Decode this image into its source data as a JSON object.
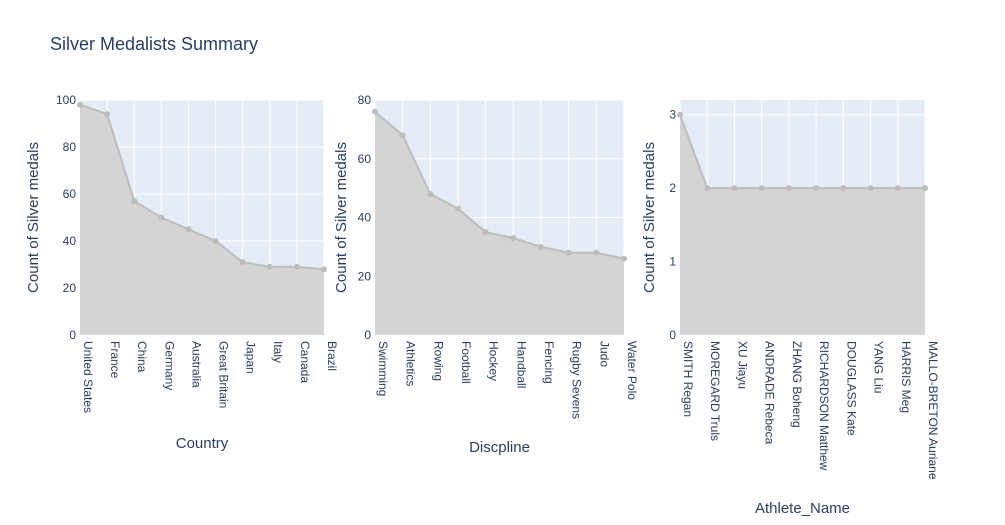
{
  "title": "Silver Medalists Summary",
  "colors": {
    "plot_bg": "#e5ecf6",
    "grid": "#ffffff",
    "area_fill": "#d3d3d3",
    "line": "#bdbdbd",
    "text": "#2a3f5f"
  },
  "chart_data": [
    {
      "type": "area",
      "xlabel": "Country",
      "ylabel": "Count of Silver medals",
      "ylim": [
        0,
        100
      ],
      "yticks": [
        0,
        20,
        40,
        60,
        80,
        100
      ],
      "grid": true,
      "categories": [
        "United States",
        "France",
        "China",
        "Germany",
        "Australia",
        "Great Britain",
        "Japan",
        "Italy",
        "Canada",
        "Brazil"
      ],
      "values": [
        98,
        94,
        57,
        50,
        45,
        40,
        31,
        29,
        29,
        28
      ]
    },
    {
      "type": "area",
      "xlabel": "Discpline",
      "ylabel": "Count of Silver medals",
      "ylim": [
        0,
        80
      ],
      "yticks": [
        0,
        20,
        40,
        60,
        80
      ],
      "grid": true,
      "categories": [
        "Swimming",
        "Athletics",
        "Rowing",
        "Football",
        "Hockey",
        "Handball",
        "Fencing",
        "Rugby Sevens",
        "Judo",
        "Water Polo"
      ],
      "values": [
        76,
        68,
        48,
        43,
        35,
        33,
        30,
        28,
        28,
        26
      ]
    },
    {
      "type": "area",
      "xlabel": "Athlete_Name",
      "ylabel": "Count of Silver medals",
      "ylim": [
        0,
        3.2
      ],
      "yticks": [
        0,
        1,
        2,
        3
      ],
      "grid": true,
      "categories": [
        "SMITH Regan",
        "MOREGARD Truls",
        "XU Jiayu",
        "ANDRADE Rebeca",
        "ZHANG Boheng",
        "RICHARDSON Matthew",
        "DOUGLASS Kate",
        "YANG Liu",
        "HARRIS Meg",
        "MALLO-BRETON Auriane"
      ],
      "values": [
        3,
        2,
        2,
        2,
        2,
        2,
        2,
        2,
        2,
        2
      ]
    }
  ]
}
